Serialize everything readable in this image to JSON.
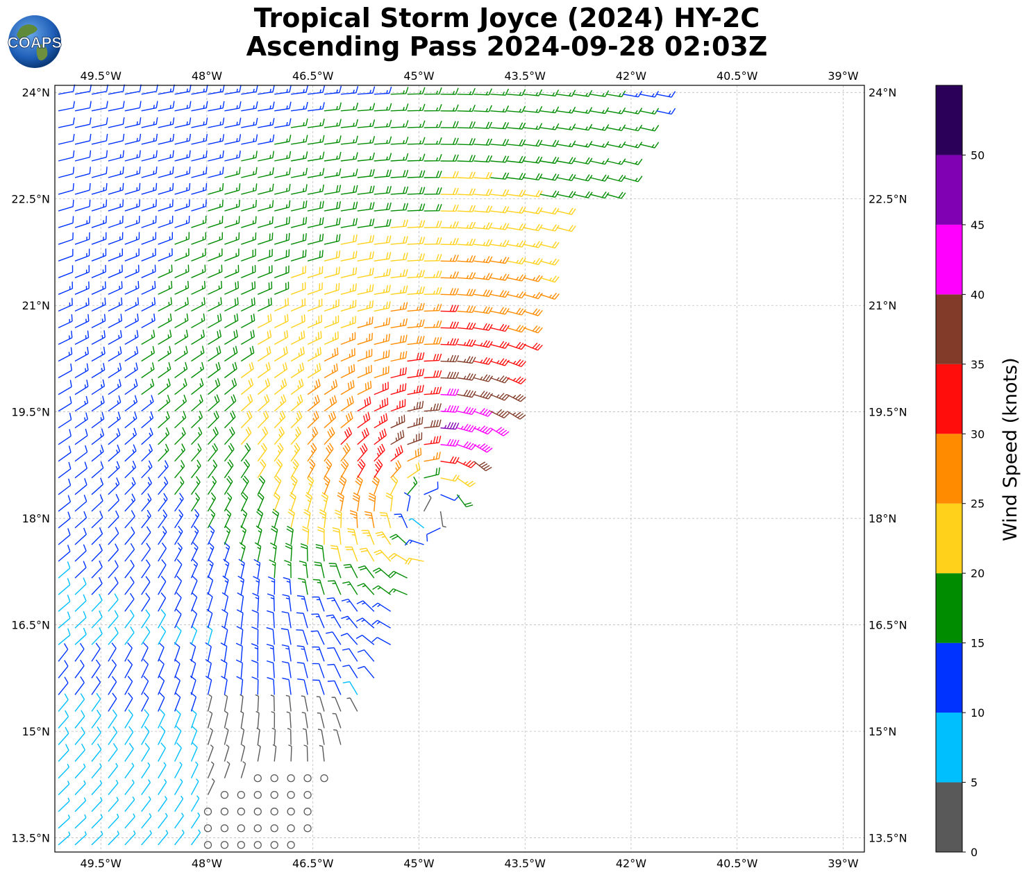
{
  "header": {
    "title_line1": "Tropical Storm Joyce (2024) HY-2C",
    "title_line2": "Ascending Pass 2024-09-28 02:03Z"
  },
  "logo": {
    "text": "COAPS",
    "icon": "globe-logo-icon"
  },
  "map": {
    "lon_range": [
      -50.15,
      -38.7
    ],
    "lat_range": [
      13.3,
      24.1
    ],
    "lon_ticks": [
      "49.5°W",
      "48°W",
      "46.5°W",
      "45°W",
      "43.5°W",
      "42°W",
      "40.5°W",
      "39°W"
    ],
    "lon_tick_values": [
      -49.5,
      -48,
      -46.5,
      -45,
      -43.5,
      -42,
      -40.5,
      -39
    ],
    "lat_ticks": [
      "24°N",
      "22.5°N",
      "21°N",
      "19.5°N",
      "18°N",
      "16.5°N",
      "15°N",
      "13.5°N"
    ],
    "lat_tick_values": [
      24,
      22.5,
      21,
      19.5,
      18,
      16.5,
      15,
      13.5
    ],
    "grid": true,
    "storm_center": {
      "lon": -44.8,
      "lat": 18.3
    }
  },
  "colorbar": {
    "label": "Wind Speed (knots)",
    "ticks": [
      "0",
      "5",
      "10",
      "15",
      "20",
      "25",
      "30",
      "35",
      "40",
      "45",
      "50"
    ],
    "bins": [
      {
        "min": 0,
        "max": 5,
        "color": "#595959"
      },
      {
        "min": 5,
        "max": 10,
        "color": "#00bfff"
      },
      {
        "min": 10,
        "max": 15,
        "color": "#0033ff"
      },
      {
        "min": 15,
        "max": 20,
        "color": "#008c00"
      },
      {
        "min": 20,
        "max": 25,
        "color": "#ffd11a"
      },
      {
        "min": 25,
        "max": 30,
        "color": "#ff8c00"
      },
      {
        "min": 30,
        "max": 35,
        "color": "#ff0d0d"
      },
      {
        "min": 35,
        "max": 40,
        "color": "#823b28"
      },
      {
        "min": 40,
        "max": 45,
        "color": "#ff00ff"
      },
      {
        "min": 45,
        "max": 50,
        "color": "#8000b3"
      },
      {
        "min": 50,
        "max": 55,
        "color": "#2b0059"
      }
    ]
  }
}
